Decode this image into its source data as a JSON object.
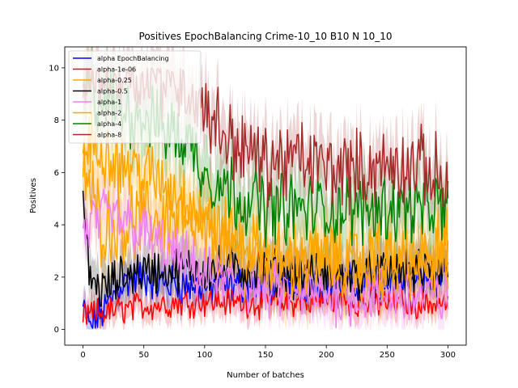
{
  "chart_data": {
    "type": "line",
    "title": "Positives EpochBalancing Crime-10_10 B10 N 10_10",
    "xlabel": "Number of batches",
    "ylabel": "Positives",
    "xlim": [
      -15,
      315
    ],
    "ylim": [
      -0.6,
      10.8
    ],
    "xticks": [
      0,
      50,
      100,
      150,
      200,
      250,
      300
    ],
    "yticks": [
      0,
      2,
      4,
      6,
      8,
      10
    ],
    "grid": false,
    "legend_position": "top-left",
    "n_points": 301,
    "series": [
      {
        "name": "alpha EpochBalancing",
        "color": "#0000ff",
        "keypoints": [
          [
            0,
            0.8
          ],
          [
            5,
            0.1
          ],
          [
            10,
            0.3
          ],
          [
            20,
            0.9
          ],
          [
            30,
            1.7
          ],
          [
            40,
            1.9
          ],
          [
            50,
            2.0
          ],
          [
            60,
            1.8
          ],
          [
            80,
            1.7
          ],
          [
            100,
            1.6
          ],
          [
            125,
            1.7
          ],
          [
            150,
            1.7
          ],
          [
            175,
            1.7
          ],
          [
            200,
            1.8
          ],
          [
            225,
            1.8
          ],
          [
            250,
            1.8
          ],
          [
            275,
            1.9
          ],
          [
            300,
            2.0
          ]
        ],
        "noise": 0.6,
        "band": 0.7
      },
      {
        "name": "alpha-1e-06",
        "color": "#ff0000",
        "keypoints": [
          [
            0,
            0.5
          ],
          [
            10,
            0.6
          ],
          [
            50,
            0.9
          ],
          [
            100,
            1.1
          ],
          [
            150,
            1.0
          ],
          [
            200,
            1.1
          ],
          [
            250,
            1.0
          ],
          [
            300,
            1.0
          ]
        ],
        "noise": 0.45,
        "band": 0.6
      },
      {
        "name": "alpha-0.25",
        "color": "#ffa500",
        "keypoints": [
          [
            0,
            6.0
          ],
          [
            5,
            5.5
          ],
          [
            15,
            4.0
          ],
          [
            30,
            4.0
          ],
          [
            60,
            4.3
          ],
          [
            80,
            4.2
          ],
          [
            100,
            3.6
          ],
          [
            125,
            3.0
          ],
          [
            150,
            2.6
          ],
          [
            175,
            2.6
          ],
          [
            200,
            2.6
          ],
          [
            225,
            2.6
          ],
          [
            250,
            2.6
          ],
          [
            275,
            2.8
          ],
          [
            300,
            3.2
          ]
        ],
        "noise": 1.2,
        "band": 1.6
      },
      {
        "name": "alpha-0.5",
        "color": "#000000",
        "keypoints": [
          [
            0,
            5.0
          ],
          [
            5,
            2.0
          ],
          [
            15,
            1.5
          ],
          [
            40,
            2.2
          ],
          [
            80,
            2.3
          ],
          [
            120,
            2.3
          ],
          [
            160,
            2.2
          ],
          [
            200,
            2.0
          ],
          [
            240,
            2.1
          ],
          [
            300,
            2.3
          ]
        ],
        "noise": 0.7,
        "band": 1.0
      },
      {
        "name": "alpha-1",
        "color": "#ee82ee",
        "keypoints": [
          [
            0,
            3.5
          ],
          [
            5,
            4.0
          ],
          [
            20,
            4.3
          ],
          [
            40,
            4.0
          ],
          [
            60,
            3.3
          ],
          [
            80,
            2.7
          ],
          [
            100,
            2.0
          ],
          [
            150,
            1.5
          ],
          [
            200,
            1.3
          ],
          [
            250,
            1.3
          ],
          [
            300,
            1.2
          ]
        ],
        "noise": 0.9,
        "band": 1.2
      },
      {
        "name": "alpha-2",
        "color": "#ffa500",
        "keypoints": [
          [
            0,
            6.5
          ],
          [
            5,
            7.0
          ],
          [
            20,
            6.8
          ],
          [
            40,
            6.2
          ],
          [
            60,
            5.7
          ],
          [
            80,
            5.2
          ],
          [
            100,
            4.2
          ],
          [
            125,
            3.4
          ],
          [
            150,
            2.8
          ],
          [
            175,
            2.6
          ],
          [
            200,
            2.6
          ],
          [
            225,
            2.6
          ],
          [
            250,
            2.5
          ],
          [
            275,
            2.6
          ],
          [
            300,
            2.6
          ]
        ],
        "noise": 1.1,
        "band": 1.5
      },
      {
        "name": "alpha-4",
        "color": "#008000",
        "keypoints": [
          [
            0,
            9.0
          ],
          [
            30,
            8.5
          ],
          [
            60,
            8.0
          ],
          [
            90,
            7.0
          ],
          [
            100,
            6.0
          ],
          [
            125,
            5.2
          ],
          [
            150,
            4.7
          ],
          [
            175,
            4.6
          ],
          [
            200,
            4.6
          ],
          [
            225,
            4.6
          ],
          [
            250,
            4.7
          ],
          [
            275,
            4.7
          ],
          [
            300,
            4.5
          ]
        ],
        "noise": 1.1,
        "band": 1.4
      },
      {
        "name": "alpha-8",
        "color": "#a52a2a",
        "keypoints": [
          [
            0,
            9.8
          ],
          [
            50,
            9.8
          ],
          [
            80,
            9.5
          ],
          [
            100,
            8.5
          ],
          [
            115,
            7.5
          ],
          [
            150,
            6.3
          ],
          [
            175,
            6.5
          ],
          [
            200,
            6.2
          ],
          [
            225,
            6.1
          ],
          [
            250,
            6.2
          ],
          [
            275,
            6.3
          ],
          [
            300,
            5.6
          ]
        ],
        "noise": 1.2,
        "band": 1.3
      }
    ]
  }
}
